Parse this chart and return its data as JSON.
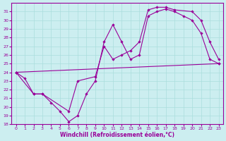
{
  "xlabel": "Windchill (Refroidissement éolien,°C)",
  "bg_color": "#cceef0",
  "line_color": "#990099",
  "grid_color": "#aadddd",
  "xlim": [
    -0.5,
    23.5
  ],
  "ylim": [
    18,
    32
  ],
  "xticks": [
    0,
    1,
    2,
    3,
    4,
    5,
    6,
    7,
    8,
    9,
    10,
    11,
    12,
    13,
    14,
    15,
    16,
    17,
    18,
    19,
    20,
    21,
    22,
    23
  ],
  "yticks": [
    18,
    19,
    20,
    21,
    22,
    23,
    24,
    25,
    26,
    27,
    28,
    29,
    30,
    31
  ],
  "line1_x": [
    0,
    1,
    2,
    3,
    4,
    5,
    6,
    7,
    8,
    9,
    10,
    11,
    12,
    13,
    14,
    15,
    16,
    17,
    18,
    19,
    20,
    21,
    22,
    23
  ],
  "line1_y": [
    24.0,
    23.3,
    21.5,
    21.5,
    20.5,
    19.5,
    18.3,
    19.0,
    21.5,
    23.0,
    27.5,
    29.5,
    27.5,
    25.5,
    26.0,
    30.5,
    31.0,
    31.3,
    31.0,
    30.5,
    30.0,
    28.5,
    25.5,
    25.0
  ],
  "line2_x": [
    0,
    2,
    3,
    6,
    7,
    9,
    10,
    11,
    12,
    13,
    14,
    15,
    16,
    17,
    18,
    20,
    21,
    22,
    23
  ],
  "line2_y": [
    24.0,
    21.5,
    21.5,
    19.5,
    23.0,
    23.5,
    27.0,
    25.5,
    26.0,
    26.5,
    27.5,
    31.2,
    31.5,
    31.5,
    31.2,
    31.0,
    30.0,
    27.5,
    25.5
  ],
  "line3_x": [
    0,
    23
  ],
  "line3_y": [
    24.0,
    25.0
  ]
}
